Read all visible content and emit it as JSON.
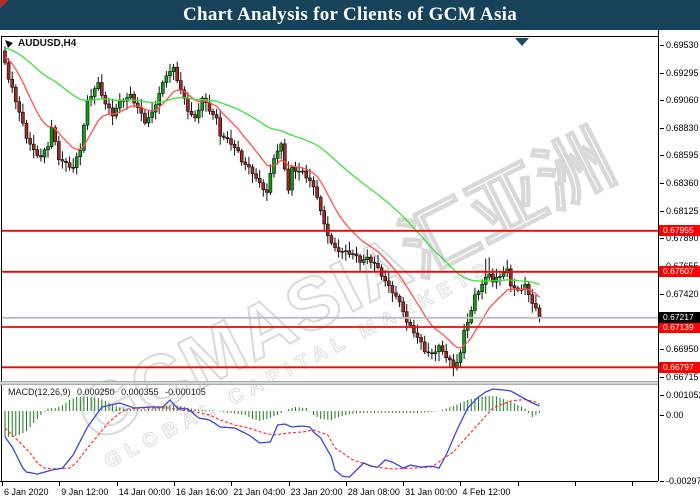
{
  "title": "Chart Analysis for Clients of GCM Asia",
  "header": {
    "symbol_label": "AUDUSD,H4"
  },
  "watermark": {
    "line1": "GCMASIA汇亚洲",
    "line2": "GLOBAL CAPITAL MARKETS"
  },
  "macd_panel": {
    "name": "MACD(12,26,9)",
    "v1": "0.000250",
    "v2": "0.000355",
    "v3": "-0.000105",
    "axis_labels": [
      "0.001052",
      "0.00",
      "-0.002976"
    ]
  },
  "price_axis_labels": [
    "0.69530",
    "0.69295",
    "0.69060",
    "0.68830",
    "0.68595",
    "0.68360",
    "0.68125",
    "0.67890",
    "0.67655",
    "0.67420",
    "0.66950",
    "0.66715"
  ],
  "level_badges": [
    {
      "text": "0.67955",
      "price": 0.67955
    },
    {
      "text": "0.67607",
      "price": 0.67607
    },
    {
      "text": "0.67139",
      "price": 0.67139
    },
    {
      "text": "0.66797",
      "price": 0.66797
    }
  ],
  "current_badge": {
    "text": "0.67217",
    "price": 0.67217
  },
  "time_axis_labels": [
    "6 Jan 2020",
    "9 Jan 12:00",
    "14 Jan 00:00",
    "16 Jan 16:00",
    "21 Jan 04:00",
    "23 Jan 20:00",
    "28 Jan 08:00",
    "31 Jan 00:00",
    "4 Feb 12:00"
  ],
  "colors": {
    "titlebar": "#16435a",
    "candle_up": "#0f9b0f",
    "candle_down": "#9e2a21",
    "wick": "#111111",
    "ma_fast": "#ff5050",
    "ma_slow": "#3ee03e",
    "level_line": "#ff0000",
    "current_line": "#b9bdc6",
    "level_badge_bg": "#ff0000",
    "current_badge_bg": "#000000",
    "macd_hist": "#1d7a1d",
    "macd_line": "#3a46d4",
    "signal_line": "#ff3333",
    "watermark": "#d9d9d9"
  },
  "chart_data": {
    "type": "candlestick",
    "symbol": "AUDUSD",
    "timeframe": "H4",
    "title": "AUDUSD H4 with MACD(12,26,9)",
    "bars": 150,
    "price_range": [
      0.6665,
      0.6959
    ],
    "y_axis_ticks": [
      0.6953,
      0.69295,
      0.6906,
      0.6883,
      0.68595,
      0.6836,
      0.68125,
      0.6789,
      0.67655,
      0.6742,
      0.6695,
      0.66715
    ],
    "x_axis_ticks": [
      "6 Jan 2020",
      "9 Jan 12:00",
      "14 Jan 00:00",
      "16 Jan 16:00",
      "21 Jan 04:00",
      "23 Jan 20:00",
      "28 Jan 08:00",
      "31 Jan 00:00",
      "4 Feb 12:00"
    ],
    "horizontal_levels": [
      0.67955,
      0.67607,
      0.67139,
      0.66797
    ],
    "current_price": 0.67217,
    "first_open": 0.6948,
    "close_anchors": [
      [
        0,
        0.6939
      ],
      [
        1,
        0.6924
      ],
      [
        2,
        0.6916
      ],
      [
        4,
        0.6896
      ],
      [
        6,
        0.6875
      ],
      [
        8,
        0.6863
      ],
      [
        10,
        0.6858
      ],
      [
        12,
        0.6868
      ],
      [
        13,
        0.6883
      ],
      [
        15,
        0.6857
      ],
      [
        17,
        0.6852
      ],
      [
        19,
        0.6849
      ],
      [
        21,
        0.6865
      ],
      [
        23,
        0.6905
      ],
      [
        25,
        0.6916
      ],
      [
        26,
        0.692
      ],
      [
        28,
        0.6903
      ],
      [
        30,
        0.6894
      ],
      [
        32,
        0.6905
      ],
      [
        35,
        0.691
      ],
      [
        37,
        0.69
      ],
      [
        39,
        0.6888
      ],
      [
        41,
        0.6895
      ],
      [
        43,
        0.6912
      ],
      [
        45,
        0.6928
      ],
      [
        47,
        0.6933
      ],
      [
        49,
        0.6915
      ],
      [
        51,
        0.6898
      ],
      [
        53,
        0.689
      ],
      [
        55,
        0.6908
      ],
      [
        57,
        0.6898
      ],
      [
        59,
        0.689
      ],
      [
        60,
        0.6877
      ],
      [
        63,
        0.687
      ],
      [
        65,
        0.6862
      ],
      [
        66,
        0.6855
      ],
      [
        69,
        0.6845
      ],
      [
        71,
        0.6835
      ],
      [
        73,
        0.6828
      ],
      [
        75,
        0.6858
      ],
      [
        77,
        0.6868
      ],
      [
        79,
        0.683
      ],
      [
        80,
        0.6848
      ],
      [
        83,
        0.6845
      ],
      [
        85,
        0.6838
      ],
      [
        87,
        0.6825
      ],
      [
        89,
        0.68
      ],
      [
        91,
        0.6785
      ],
      [
        92,
        0.678
      ],
      [
        94,
        0.6778
      ],
      [
        97,
        0.6776
      ],
      [
        99,
        0.677
      ],
      [
        101,
        0.6772
      ],
      [
        103,
        0.6768
      ],
      [
        105,
        0.6758
      ],
      [
        107,
        0.6748
      ],
      [
        109,
        0.674
      ],
      [
        111,
        0.6728
      ],
      [
        112,
        0.6718
      ],
      [
        114,
        0.671
      ],
      [
        116,
        0.67
      ],
      [
        117,
        0.6694
      ],
      [
        119,
        0.669
      ],
      [
        121,
        0.6698
      ],
      [
        122,
        0.6692
      ],
      [
        124,
        0.6686
      ],
      [
        125,
        0.6678
      ],
      [
        127,
        0.6692
      ],
      [
        128,
        0.671
      ],
      [
        130,
        0.6728
      ],
      [
        131,
        0.674
      ],
      [
        133,
        0.675
      ],
      [
        135,
        0.676
      ],
      [
        136,
        0.6752
      ],
      [
        138,
        0.6758
      ],
      [
        140,
        0.6762
      ],
      [
        141,
        0.675
      ],
      [
        143,
        0.6744
      ],
      [
        145,
        0.675
      ],
      [
        146,
        0.674
      ],
      [
        148,
        0.673
      ],
      [
        149,
        0.67217
      ]
    ],
    "wick_overrides": {
      "0": {
        "h": 0.6952
      },
      "47": {
        "h": 0.6937
      },
      "125": {
        "l": 0.6672
      },
      "134": {
        "h": 0.6772
      },
      "135": {
        "h": 0.6773
      },
      "149": {
        "l": 0.6718
      }
    },
    "moving_averages": [
      {
        "name": "fast-ma",
        "period": 13,
        "seed": 0.6944,
        "color_key": "ma_fast"
      },
      {
        "name": "slow-ma",
        "period": 55,
        "seed": 0.6951,
        "color_key": "ma_slow"
      }
    ],
    "indicator": {
      "type": "MACD",
      "params": [
        12,
        26,
        9
      ],
      "current_values": [
        0.00025,
        0.000355,
        -0.000105
      ],
      "scale_max": 0.001052,
      "scale_zero": 0.0,
      "scale_min": -0.002976,
      "macd_anchors": [
        [
          0,
          -0.0013
        ],
        [
          2,
          -0.0018
        ],
        [
          5,
          -0.00286
        ],
        [
          6,
          -0.00306
        ],
        [
          9,
          -0.00316
        ],
        [
          13,
          -0.00296
        ],
        [
          16,
          -0.00286
        ],
        [
          19,
          -0.0022
        ],
        [
          23,
          -0.0008
        ],
        [
          27,
          0.0002
        ],
        [
          32,
          0.0004
        ],
        [
          36,
          0.00015
        ],
        [
          40,
          0.0002
        ],
        [
          44,
          0.0002
        ],
        [
          46,
          0.00055
        ],
        [
          48,
          0.00015
        ],
        [
          51,
          0.0001
        ],
        [
          54,
          -0.00035
        ],
        [
          57,
          -0.00045
        ],
        [
          60,
          -0.0008
        ],
        [
          64,
          -0.00085
        ],
        [
          68,
          -0.0012
        ],
        [
          71,
          -0.0016
        ],
        [
          74,
          -0.00155
        ],
        [
          76,
          -0.0007
        ],
        [
          78,
          -0.00065
        ],
        [
          80,
          -0.0008
        ],
        [
          83,
          -0.00075
        ],
        [
          85,
          -0.0008
        ],
        [
          86,
          -0.00105
        ],
        [
          88,
          -0.00135
        ],
        [
          91,
          -0.0023
        ],
        [
          92,
          -0.00296
        ],
        [
          94,
          -0.00326
        ],
        [
          96,
          -0.00331
        ],
        [
          98,
          -0.00296
        ],
        [
          100,
          -0.0026
        ],
        [
          102,
          -0.00276
        ],
        [
          104,
          -0.00281
        ],
        [
          106,
          -0.00245
        ],
        [
          108,
          -0.00256
        ],
        [
          111,
          -0.00286
        ],
        [
          113,
          -0.00271
        ],
        [
          116,
          -0.00281
        ],
        [
          119,
          -0.00276
        ],
        [
          121,
          -0.00286
        ],
        [
          123,
          -0.0022
        ],
        [
          126,
          -0.00095
        ],
        [
          129,
          0.00015
        ],
        [
          132,
          0.0007
        ],
        [
          134,
          0.00095
        ],
        [
          136,
          0.0011
        ],
        [
          139,
          0.00105
        ],
        [
          141,
          0.001
        ],
        [
          144,
          0.0007
        ],
        [
          147,
          0.0004
        ],
        [
          149,
          0.00025
        ]
      ],
      "signal_anchors": [
        [
          0,
          -0.00085
        ],
        [
          4,
          -0.00155
        ],
        [
          7,
          -0.0021
        ],
        [
          9,
          -0.0026
        ],
        [
          11,
          -0.00286
        ],
        [
          14,
          -0.0029
        ],
        [
          18,
          -0.00286
        ],
        [
          20,
          -0.00256
        ],
        [
          23,
          -0.00185
        ],
        [
          26,
          -0.0012
        ],
        [
          29,
          -0.00055
        ],
        [
          32,
          -0.0001
        ],
        [
          34,
          0.0001
        ],
        [
          38,
          0.00015
        ],
        [
          42,
          0.00015
        ],
        [
          46,
          0.00015
        ],
        [
          49,
          5e-05
        ],
        [
          53,
          -5e-05
        ],
        [
          57,
          -0.0002
        ],
        [
          60,
          -0.00045
        ],
        [
          64,
          -0.0007
        ],
        [
          68,
          -0.00085
        ],
        [
          72,
          -0.0011
        ],
        [
          75,
          -0.0012
        ],
        [
          79,
          -0.0011
        ],
        [
          83,
          -0.00105
        ],
        [
          86,
          -0.00095
        ],
        [
          90,
          -0.0012
        ],
        [
          92,
          -0.00185
        ],
        [
          97,
          -0.00245
        ],
        [
          103,
          -0.0028
        ],
        [
          108,
          -0.0029
        ],
        [
          114,
          -0.00286
        ],
        [
          119,
          -0.0028
        ],
        [
          125,
          -0.00205
        ],
        [
          131,
          -0.00085
        ],
        [
          136,
          0.00015
        ],
        [
          141,
          0.0005
        ],
        [
          145,
          0.00058
        ],
        [
          148,
          0.00045
        ],
        [
          149,
          0.000355
        ]
      ],
      "hist_anchors": [
        [
          0,
          -0.0013
        ],
        [
          2,
          -0.0013
        ],
        [
          4,
          -0.0012
        ],
        [
          6,
          -0.001
        ],
        [
          8,
          -0.0006
        ],
        [
          10,
          -0.0002
        ],
        [
          12,
          0.00012
        ],
        [
          14,
          0.00015
        ],
        [
          16,
          0.00028
        ],
        [
          18,
          0.00055
        ],
        [
          20,
          0.0007
        ],
        [
          23,
          0.00072
        ],
        [
          26,
          0.00065
        ],
        [
          28,
          0.0005
        ],
        [
          30,
          0.0003
        ],
        [
          33,
          0.00012
        ],
        [
          36,
          8e-05
        ],
        [
          40,
          0.0001
        ],
        [
          43,
          0.00015
        ],
        [
          45,
          0.00025
        ],
        [
          47,
          0.0003
        ],
        [
          49,
          0.00025
        ],
        [
          52,
          0.00012
        ],
        [
          55,
          6e-05
        ],
        [
          58,
          4e-05
        ],
        [
          61,
          -6e-05
        ],
        [
          64,
          -0.00012
        ],
        [
          67,
          -0.0002
        ],
        [
          69,
          -0.0004
        ],
        [
          71,
          -0.0005
        ],
        [
          73,
          -0.0004
        ],
        [
          76,
          -0.0002
        ],
        [
          79,
          0.0001
        ],
        [
          81,
          0.0002
        ],
        [
          84,
          0.00015
        ],
        [
          86,
          -0.0002
        ],
        [
          88,
          -0.0004
        ],
        [
          91,
          -0.00045
        ],
        [
          93,
          -0.0003
        ],
        [
          96,
          -0.00015
        ],
        [
          100,
          -0.0001
        ],
        [
          105,
          -8e-05
        ],
        [
          110,
          -0.0001
        ],
        [
          115,
          -0.0001
        ],
        [
          119,
          -5e-05
        ],
        [
          121,
          0
        ],
        [
          123,
          0.00012
        ],
        [
          125,
          0.00025
        ],
        [
          127,
          0.0004
        ],
        [
          129,
          0.00055
        ],
        [
          131,
          0.00065
        ],
        [
          133,
          0.00072
        ],
        [
          135,
          0.00075
        ],
        [
          137,
          0.00073
        ],
        [
          139,
          0.0006
        ],
        [
          141,
          0.00045
        ],
        [
          143,
          0.0003
        ],
        [
          145,
          0.00012
        ],
        [
          146,
          -0.0001
        ],
        [
          147,
          -0.0003
        ],
        [
          148,
          -0.0002
        ],
        [
          149,
          -0.000105
        ]
      ]
    }
  }
}
